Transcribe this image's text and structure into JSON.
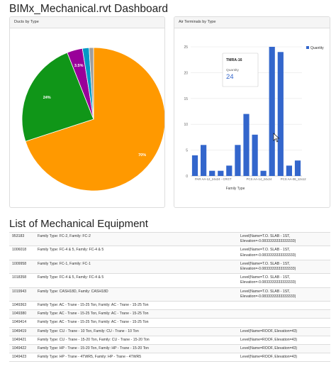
{
  "page": {
    "title": "BIMx_Mechanical.rvt Dashboard"
  },
  "ducts_panel": {
    "title": "Ducts by Type"
  },
  "air_panel": {
    "title": "Air Terminals by Type"
  },
  "tooltip": {
    "label": "TMRA-16",
    "metric": "Quantity",
    "value": "24"
  },
  "equipment": {
    "title": "List of Mechanical Equipment",
    "rows": [
      {
        "id": "953183",
        "type": "Family Type: FC-2, Family: FC-2",
        "level": [
          "Level(Name=T.O. SLAB - 1ST,",
          "Elevation=-0.0833333333333333)"
        ]
      },
      {
        "id": "1006018",
        "type": "Family Type: FC-4 & 5, Family: FC-4 & 5",
        "level": [
          "Level(Name=T.O. SLAB - 1ST,",
          "Elevation=-0.0833333333333333)"
        ]
      },
      {
        "id": "1009958",
        "type": "Family Type: FC-1, Family: FC-1",
        "level": [
          "Level(Name=T.O. SLAB - 1ST,",
          "Elevation=-0.0833333333333333)"
        ]
      },
      {
        "id": "1018358",
        "type": "Family Type: FC-4 & 5, Family: FC-4 & 5",
        "level": [
          "Level(Name=T.O. SLAB - 1ST,",
          "Elevation=-0.0833333333333333)"
        ]
      },
      {
        "id": "1019943",
        "type": "Family Type: CASH18D, Family: CASH18D",
        "level": [
          "Level(Name=T.O. SLAB - 1ST,",
          "Elevation=-0.0833333333333333)"
        ]
      },
      {
        "id": "1049363",
        "type": "Family Type: AC - Trane - 15-25 Ton, Family: AC - Trane - 15-25 Ton",
        "level": []
      },
      {
        "id": "1049380",
        "type": "Family Type: AC - Trane - 15-25 Ton, Family: AC - Trane - 15-25 Ton",
        "level": []
      },
      {
        "id": "1049414",
        "type": "Family Type: AC - Trane - 15-25 Ton, Family: AC - Trane - 15-25 Ton",
        "level": []
      },
      {
        "id": "1049419",
        "type": "Family Type: CU - Trane - 10 Ton, Family: CU - Trane - 10 Ton",
        "level": [
          "Level(Name=ROOF, Elevation=43)"
        ]
      },
      {
        "id": "1049421",
        "type": "Family Type: CU - Trane - 15-20 Ton, Family: CU - Trane - 15-20 Ton",
        "level": [
          "Level(Name=ROOF, Elevation=43)"
        ]
      },
      {
        "id": "1049422",
        "type": "Family Type: HP - Trane - 15-20 Ton, Family: HP - Trane - 15-20 Ton",
        "level": [
          "Level(Name=ROOF, Elevation=43)"
        ]
      },
      {
        "id": "1049423",
        "type": "Family Type: HP - Trane - 4TWR5, Family: HP - Trane - 4TWR5",
        "level": [
          "Level(Name=ROOF, Elevation=43)"
        ]
      }
    ]
  },
  "chart_data": [
    {
      "type": "pie",
      "title": "Ducts by Type",
      "slices": [
        {
          "value": 70,
          "label": "70%",
          "color": "#ff9900"
        },
        {
          "value": 24,
          "label": "24%",
          "color": "#109618"
        },
        {
          "value": 3.5,
          "label": "3.5%",
          "color": "#990099"
        },
        {
          "value": 1.5,
          "label": "",
          "color": "#0099c6"
        },
        {
          "value": 1.0,
          "label": "",
          "color": "#9e9e9e"
        }
      ]
    },
    {
      "type": "bar",
      "title": "Air Terminals by Type",
      "xlabel": "Family Type",
      "ylabel": "",
      "ylim": [
        0,
        25
      ],
      "yticks": [
        0,
        5,
        10,
        15,
        20,
        25
      ],
      "grid": true,
      "legend": "top-right",
      "series": [
        {
          "name": "Quantity",
          "color": "#3366cc",
          "values": [
            4,
            6,
            1,
            1,
            2,
            6,
            12,
            8,
            1,
            25,
            24,
            2,
            3
          ]
        }
      ],
      "xtick_labels": [
        "PAR AA-12_24x24 - CRGT",
        "PCS AA-14_24x24",
        "PCS AA-08_12x12"
      ],
      "xtick_positions": [
        0,
        6,
        10
      ]
    }
  ]
}
